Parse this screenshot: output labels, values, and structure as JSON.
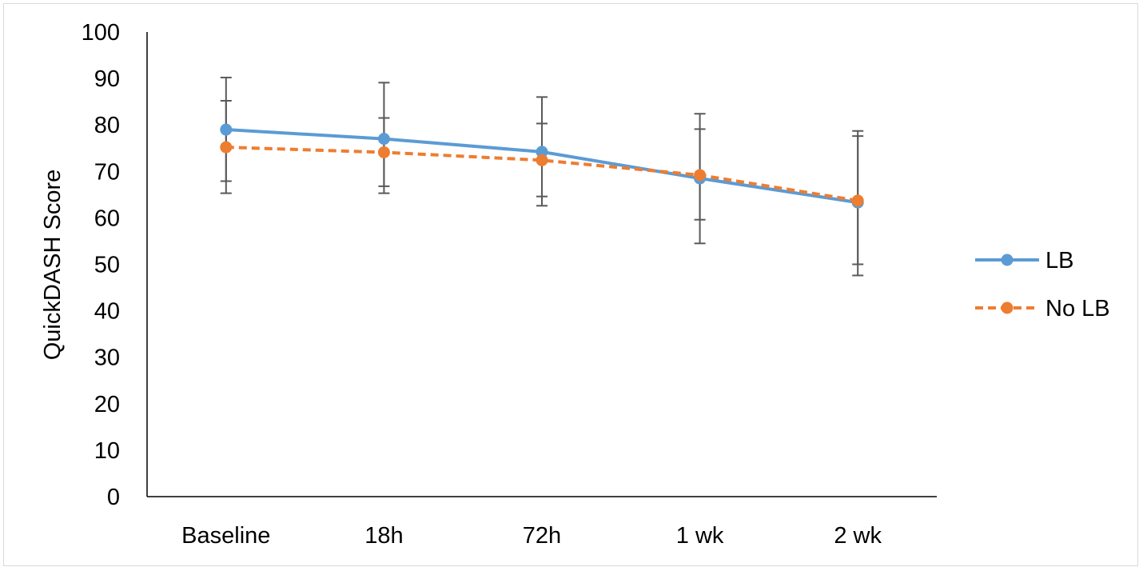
{
  "chart_data": {
    "type": "line",
    "title": "",
    "xlabel": "",
    "ylabel": "QuickDASH Score",
    "ylim": [
      0,
      100
    ],
    "yticks": [
      0,
      10,
      20,
      30,
      40,
      50,
      60,
      70,
      80,
      90,
      100
    ],
    "categories": [
      "Baseline",
      "18h",
      "72h",
      "1 wk",
      "2 wk"
    ],
    "grid": false,
    "legend_position": "right",
    "series": [
      {
        "name": "LB",
        "color": "#5b9bd5",
        "line_style": "solid",
        "values": [
          79,
          77,
          74.2,
          68.5,
          63.3
        ],
        "error_low": [
          65.3,
          65.3,
          62.6,
          54.5,
          47.6
        ],
        "error_high": [
          90.2,
          89.1,
          86,
          82.4,
          77.6
        ]
      },
      {
        "name": "No LB",
        "color": "#ed7d31",
        "line_style": "dashed",
        "values": [
          75.2,
          74.1,
          72.4,
          69.2,
          63.7
        ],
        "error_low": [
          67.9,
          66.8,
          64.6,
          59.6,
          50
        ],
        "error_high": [
          85.2,
          81.5,
          80.3,
          79.1,
          78.7
        ]
      }
    ]
  }
}
